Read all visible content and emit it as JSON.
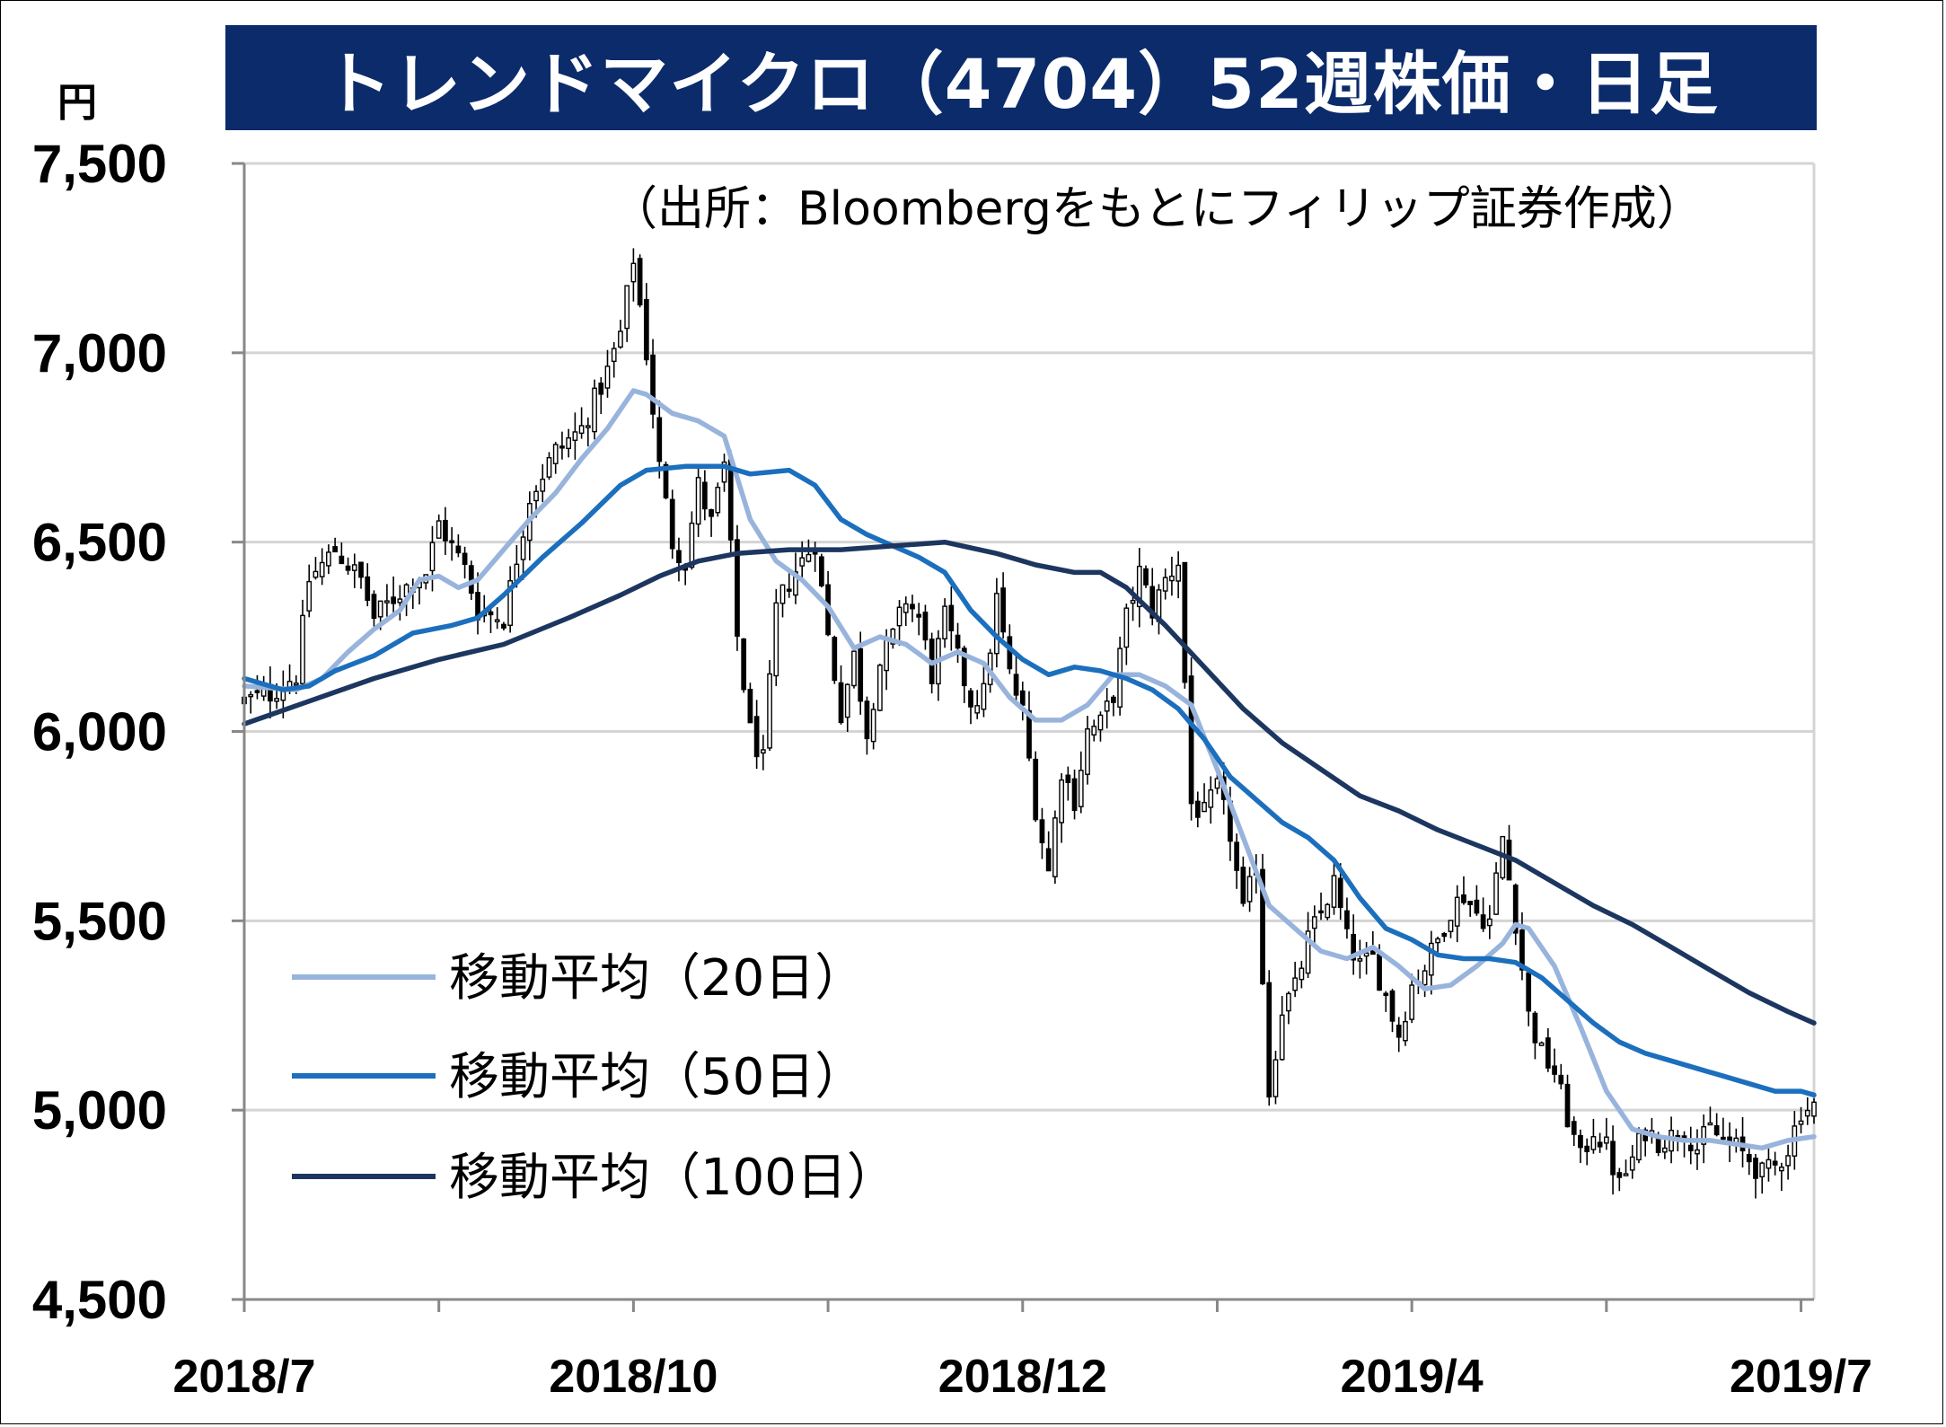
{
  "title": "トレンドマイクロ（4704）52週株価・日足",
  "unit": "円",
  "source": "（出所：Bloombergをもとにフィリップ証券作成）",
  "chart_data": {
    "type": "candlestick",
    "title": "トレンドマイクロ（4704）52週株価・日足",
    "ylabel": "円",
    "ylim": [
      4500,
      7500
    ],
    "yticks": [
      "7,500",
      "7,000",
      "6,500",
      "6,000",
      "5,500",
      "5,000",
      "4,500"
    ],
    "ytick_values": [
      7500,
      7000,
      6500,
      6000,
      5500,
      5000,
      4500
    ],
    "xticks": [
      {
        "label": "2018/7",
        "index": 0
      },
      {
        "label": "2018/10",
        "index": 60
      },
      {
        "label": "2018/12",
        "index": 120
      },
      {
        "label": "2019/4",
        "index": 180
      },
      {
        "label": "2019/7",
        "index": 240
      }
    ],
    "n_days": 243,
    "grid": true,
    "legend_position": "lower-left",
    "anchors": [
      [
        0,
        6080
      ],
      [
        4,
        6100
      ],
      [
        8,
        6150
      ],
      [
        10,
        6400
      ],
      [
        14,
        6480
      ],
      [
        18,
        6400
      ],
      [
        20,
        6300
      ],
      [
        24,
        6370
      ],
      [
        28,
        6420
      ],
      [
        30,
        6550
      ],
      [
        34,
        6430
      ],
      [
        36,
        6320
      ],
      [
        40,
        6300
      ],
      [
        44,
        6620
      ],
      [
        48,
        6740
      ],
      [
        52,
        6800
      ],
      [
        56,
        6950
      ],
      [
        58,
        7050
      ],
      [
        60,
        7250
      ],
      [
        62,
        7000
      ],
      [
        64,
        6700
      ],
      [
        66,
        6500
      ],
      [
        68,
        6450
      ],
      [
        70,
        6650
      ],
      [
        72,
        6550
      ],
      [
        74,
        6700
      ],
      [
        76,
        6250
      ],
      [
        78,
        6000
      ],
      [
        80,
        5920
      ],
      [
        82,
        6320
      ],
      [
        84,
        6400
      ],
      [
        86,
        6450
      ],
      [
        88,
        6500
      ],
      [
        90,
        6250
      ],
      [
        92,
        6050
      ],
      [
        94,
        6200
      ],
      [
        96,
        6000
      ],
      [
        98,
        6180
      ],
      [
        100,
        6250
      ],
      [
        102,
        6350
      ],
      [
        104,
        6300
      ],
      [
        106,
        6150
      ],
      [
        108,
        6300
      ],
      [
        112,
        6080
      ],
      [
        114,
        6100
      ],
      [
        116,
        6350
      ],
      [
        118,
        6150
      ],
      [
        120,
        6050
      ],
      [
        122,
        5800
      ],
      [
        124,
        5630
      ],
      [
        126,
        5900
      ],
      [
        128,
        5820
      ],
      [
        130,
        6000
      ],
      [
        132,
        6020
      ],
      [
        134,
        6100
      ],
      [
        136,
        6300
      ],
      [
        138,
        6420
      ],
      [
        140,
        6320
      ],
      [
        142,
        6400
      ],
      [
        144,
        6450
      ],
      [
        146,
        5810
      ],
      [
        148,
        5780
      ],
      [
        150,
        5850
      ],
      [
        152,
        5730
      ],
      [
        154,
        5520
      ],
      [
        156,
        5650
      ],
      [
        158,
        5050
      ],
      [
        160,
        5270
      ],
      [
        162,
        5320
      ],
      [
        164,
        5450
      ],
      [
        166,
        5520
      ],
      [
        168,
        5600
      ],
      [
        170,
        5450
      ],
      [
        172,
        5380
      ],
      [
        174,
        5400
      ],
      [
        176,
        5300
      ],
      [
        178,
        5200
      ],
      [
        180,
        5330
      ],
      [
        182,
        5380
      ],
      [
        184,
        5450
      ],
      [
        186,
        5530
      ],
      [
        188,
        5570
      ],
      [
        190,
        5520
      ],
      [
        192,
        5500
      ],
      [
        194,
        5720
      ],
      [
        196,
        5500
      ],
      [
        198,
        5250
      ],
      [
        200,
        5150
      ],
      [
        202,
        5100
      ],
      [
        204,
        4980
      ],
      [
        206,
        4870
      ],
      [
        208,
        4950
      ],
      [
        210,
        4900
      ],
      [
        212,
        4800
      ],
      [
        214,
        4870
      ],
      [
        216,
        4950
      ],
      [
        218,
        4920
      ],
      [
        220,
        4930
      ],
      [
        222,
        4950
      ],
      [
        224,
        4900
      ],
      [
        226,
        4950
      ],
      [
        228,
        4920
      ],
      [
        230,
        4900
      ],
      [
        232,
        4870
      ],
      [
        234,
        4830
      ],
      [
        236,
        4850
      ],
      [
        238,
        4900
      ],
      [
        240,
        5000
      ],
      [
        242,
        5010
      ]
    ],
    "wick_amplitude": 55,
    "series": [
      {
        "name": "移動平均（20日）",
        "color": "#98b4dc",
        "points": [
          [
            0,
            6120
          ],
          [
            8,
            6110
          ],
          [
            12,
            6140
          ],
          [
            16,
            6210
          ],
          [
            20,
            6270
          ],
          [
            24,
            6320
          ],
          [
            27,
            6400
          ],
          [
            30,
            6410
          ],
          [
            33,
            6380
          ],
          [
            36,
            6400
          ],
          [
            40,
            6480
          ],
          [
            44,
            6560
          ],
          [
            48,
            6630
          ],
          [
            52,
            6720
          ],
          [
            56,
            6800
          ],
          [
            60,
            6900
          ],
          [
            62,
            6890
          ],
          [
            66,
            6840
          ],
          [
            70,
            6820
          ],
          [
            74,
            6780
          ],
          [
            78,
            6560
          ],
          [
            82,
            6450
          ],
          [
            86,
            6400
          ],
          [
            90,
            6330
          ],
          [
            94,
            6220
          ],
          [
            98,
            6250
          ],
          [
            102,
            6230
          ],
          [
            106,
            6180
          ],
          [
            110,
            6210
          ],
          [
            114,
            6180
          ],
          [
            118,
            6090
          ],
          [
            122,
            6030
          ],
          [
            126,
            6030
          ],
          [
            130,
            6070
          ],
          [
            134,
            6150
          ],
          [
            138,
            6150
          ],
          [
            142,
            6120
          ],
          [
            146,
            6070
          ],
          [
            150,
            5900
          ],
          [
            154,
            5720
          ],
          [
            158,
            5540
          ],
          [
            162,
            5480
          ],
          [
            166,
            5420
          ],
          [
            170,
            5400
          ],
          [
            174,
            5430
          ],
          [
            178,
            5380
          ],
          [
            182,
            5320
          ],
          [
            186,
            5330
          ],
          [
            190,
            5380
          ],
          [
            194,
            5440
          ],
          [
            196,
            5490
          ],
          [
            198,
            5480
          ],
          [
            202,
            5380
          ],
          [
            206,
            5220
          ],
          [
            210,
            5050
          ],
          [
            214,
            4950
          ],
          [
            218,
            4930
          ],
          [
            222,
            4920
          ],
          [
            226,
            4920
          ],
          [
            230,
            4910
          ],
          [
            234,
            4900
          ],
          [
            238,
            4920
          ],
          [
            242,
            4930
          ]
        ]
      },
      {
        "name": "移動平均（50日）",
        "color": "#1b6fbd",
        "points": [
          [
            0,
            6140
          ],
          [
            6,
            6110
          ],
          [
            10,
            6120
          ],
          [
            14,
            6160
          ],
          [
            20,
            6200
          ],
          [
            26,
            6260
          ],
          [
            32,
            6280
          ],
          [
            36,
            6300
          ],
          [
            40,
            6360
          ],
          [
            46,
            6460
          ],
          [
            52,
            6550
          ],
          [
            58,
            6650
          ],
          [
            62,
            6690
          ],
          [
            68,
            6700
          ],
          [
            74,
            6700
          ],
          [
            78,
            6680
          ],
          [
            84,
            6690
          ],
          [
            88,
            6650
          ],
          [
            92,
            6560
          ],
          [
            96,
            6520
          ],
          [
            100,
            6490
          ],
          [
            104,
            6460
          ],
          [
            108,
            6420
          ],
          [
            112,
            6320
          ],
          [
            116,
            6250
          ],
          [
            120,
            6190
          ],
          [
            124,
            6150
          ],
          [
            128,
            6170
          ],
          [
            132,
            6160
          ],
          [
            136,
            6140
          ],
          [
            140,
            6110
          ],
          [
            144,
            6060
          ],
          [
            148,
            5980
          ],
          [
            152,
            5880
          ],
          [
            156,
            5820
          ],
          [
            160,
            5760
          ],
          [
            164,
            5720
          ],
          [
            168,
            5660
          ],
          [
            172,
            5560
          ],
          [
            176,
            5480
          ],
          [
            180,
            5450
          ],
          [
            184,
            5410
          ],
          [
            188,
            5400
          ],
          [
            192,
            5400
          ],
          [
            196,
            5390
          ],
          [
            200,
            5350
          ],
          [
            204,
            5290
          ],
          [
            208,
            5230
          ],
          [
            212,
            5180
          ],
          [
            216,
            5150
          ],
          [
            220,
            5130
          ],
          [
            224,
            5110
          ],
          [
            228,
            5090
          ],
          [
            232,
            5070
          ],
          [
            236,
            5050
          ],
          [
            240,
            5050
          ],
          [
            242,
            5040
          ]
        ]
      },
      {
        "name": "移動平均（100日）",
        "color": "#1c3660",
        "points": [
          [
            0,
            6020
          ],
          [
            10,
            6080
          ],
          [
            20,
            6140
          ],
          [
            30,
            6190
          ],
          [
            40,
            6230
          ],
          [
            50,
            6300
          ],
          [
            58,
            6360
          ],
          [
            64,
            6410
          ],
          [
            70,
            6450
          ],
          [
            76,
            6470
          ],
          [
            84,
            6480
          ],
          [
            92,
            6480
          ],
          [
            100,
            6490
          ],
          [
            108,
            6500
          ],
          [
            116,
            6470
          ],
          [
            122,
            6440
          ],
          [
            128,
            6420
          ],
          [
            132,
            6420
          ],
          [
            136,
            6380
          ],
          [
            142,
            6280
          ],
          [
            148,
            6170
          ],
          [
            154,
            6060
          ],
          [
            160,
            5970
          ],
          [
            166,
            5900
          ],
          [
            172,
            5830
          ],
          [
            178,
            5790
          ],
          [
            184,
            5740
          ],
          [
            190,
            5700
          ],
          [
            196,
            5660
          ],
          [
            202,
            5600
          ],
          [
            208,
            5540
          ],
          [
            214,
            5490
          ],
          [
            220,
            5430
          ],
          [
            226,
            5370
          ],
          [
            232,
            5310
          ],
          [
            238,
            5260
          ],
          [
            242,
            5230
          ]
        ]
      }
    ]
  },
  "legend": [
    {
      "label": "移動平均（20日）",
      "color": "#98b4dc"
    },
    {
      "label": "移動平均（50日）",
      "color": "#1b6fbd"
    },
    {
      "label": "移動平均（100日）",
      "color": "#1c3660"
    }
  ]
}
